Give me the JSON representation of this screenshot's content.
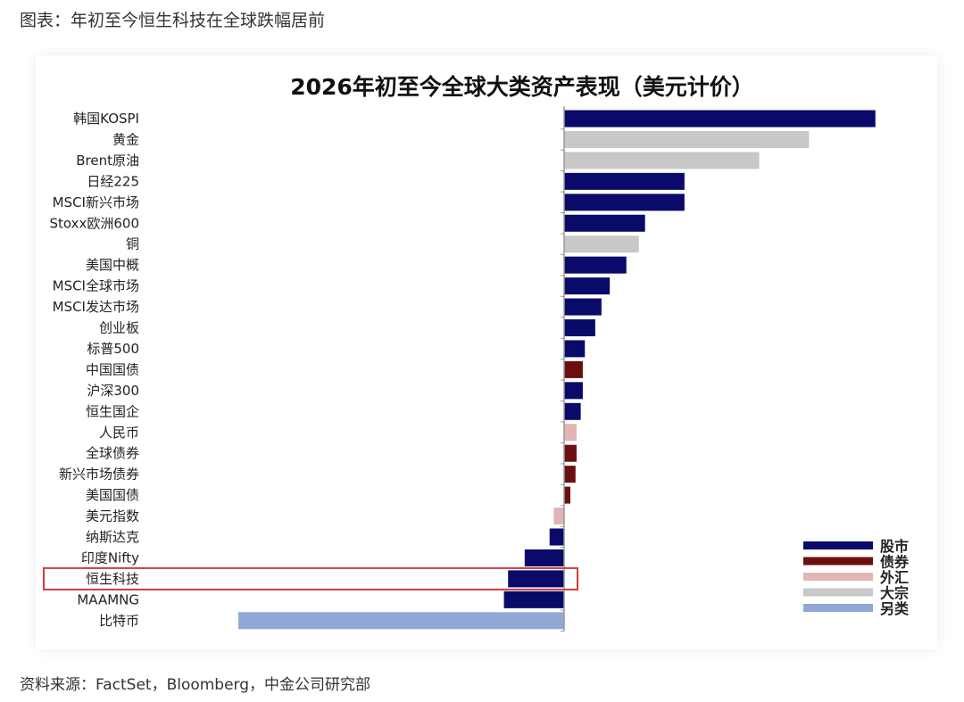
{
  "figure": {
    "caption": "图表：年初至今恒生科技在全球跌幅居前",
    "source": "资料来源：FactSet，Bloomberg，中金公司研究部"
  },
  "chart_data": {
    "type": "bar",
    "orientation": "horizontal",
    "title": "2026年初至今全球大类资产表现（美元计价）",
    "xlabel": "",
    "ylabel": "",
    "xlim": [
      -16,
      15
    ],
    "grid": false,
    "categories": [
      "韩国KOSPI",
      "黄金",
      "Brent原油",
      "日经225",
      "MSCI新兴市场",
      "Stoxx欧洲600",
      "铜",
      "美国中概",
      "MSCI全球市场",
      "MSCI发达市场",
      "创业板",
      "标普500",
      "中国国债",
      "沪深300",
      "恒生国企",
      "人民币",
      "全球债券",
      "新兴市场债券",
      "美国国债",
      "美元指数",
      "纳斯达克",
      "印度Nifty",
      "恒生科技",
      "MAAMNG",
      "比特币"
    ],
    "values": [
      15.0,
      11.8,
      9.4,
      5.8,
      5.8,
      3.9,
      3.6,
      3.0,
      2.2,
      1.8,
      1.5,
      1.0,
      0.9,
      0.9,
      0.8,
      0.6,
      0.6,
      0.55,
      0.3,
      -0.5,
      -0.7,
      -1.9,
      -2.7,
      -2.9,
      -15.7
    ],
    "asset_class": [
      "股市",
      "大宗",
      "大宗",
      "股市",
      "股市",
      "股市",
      "大宗",
      "股市",
      "股市",
      "股市",
      "股市",
      "股市",
      "债券",
      "股市",
      "股市",
      "外汇",
      "债券",
      "债券",
      "债券",
      "外汇",
      "股市",
      "股市",
      "股市",
      "股市",
      "另类"
    ],
    "highlight": "恒生科技",
    "legend_position": "bottom-right",
    "legend": [
      {
        "name": "股市",
        "color": "#0a0a6b"
      },
      {
        "name": "债券",
        "color": "#6b0f0f"
      },
      {
        "name": "外汇",
        "color": "#e2b4b4"
      },
      {
        "name": "大宗",
        "color": "#c8c8c8"
      },
      {
        "name": "另类",
        "color": "#8fa8d4"
      }
    ],
    "highlight_color": "#d03a3a"
  }
}
